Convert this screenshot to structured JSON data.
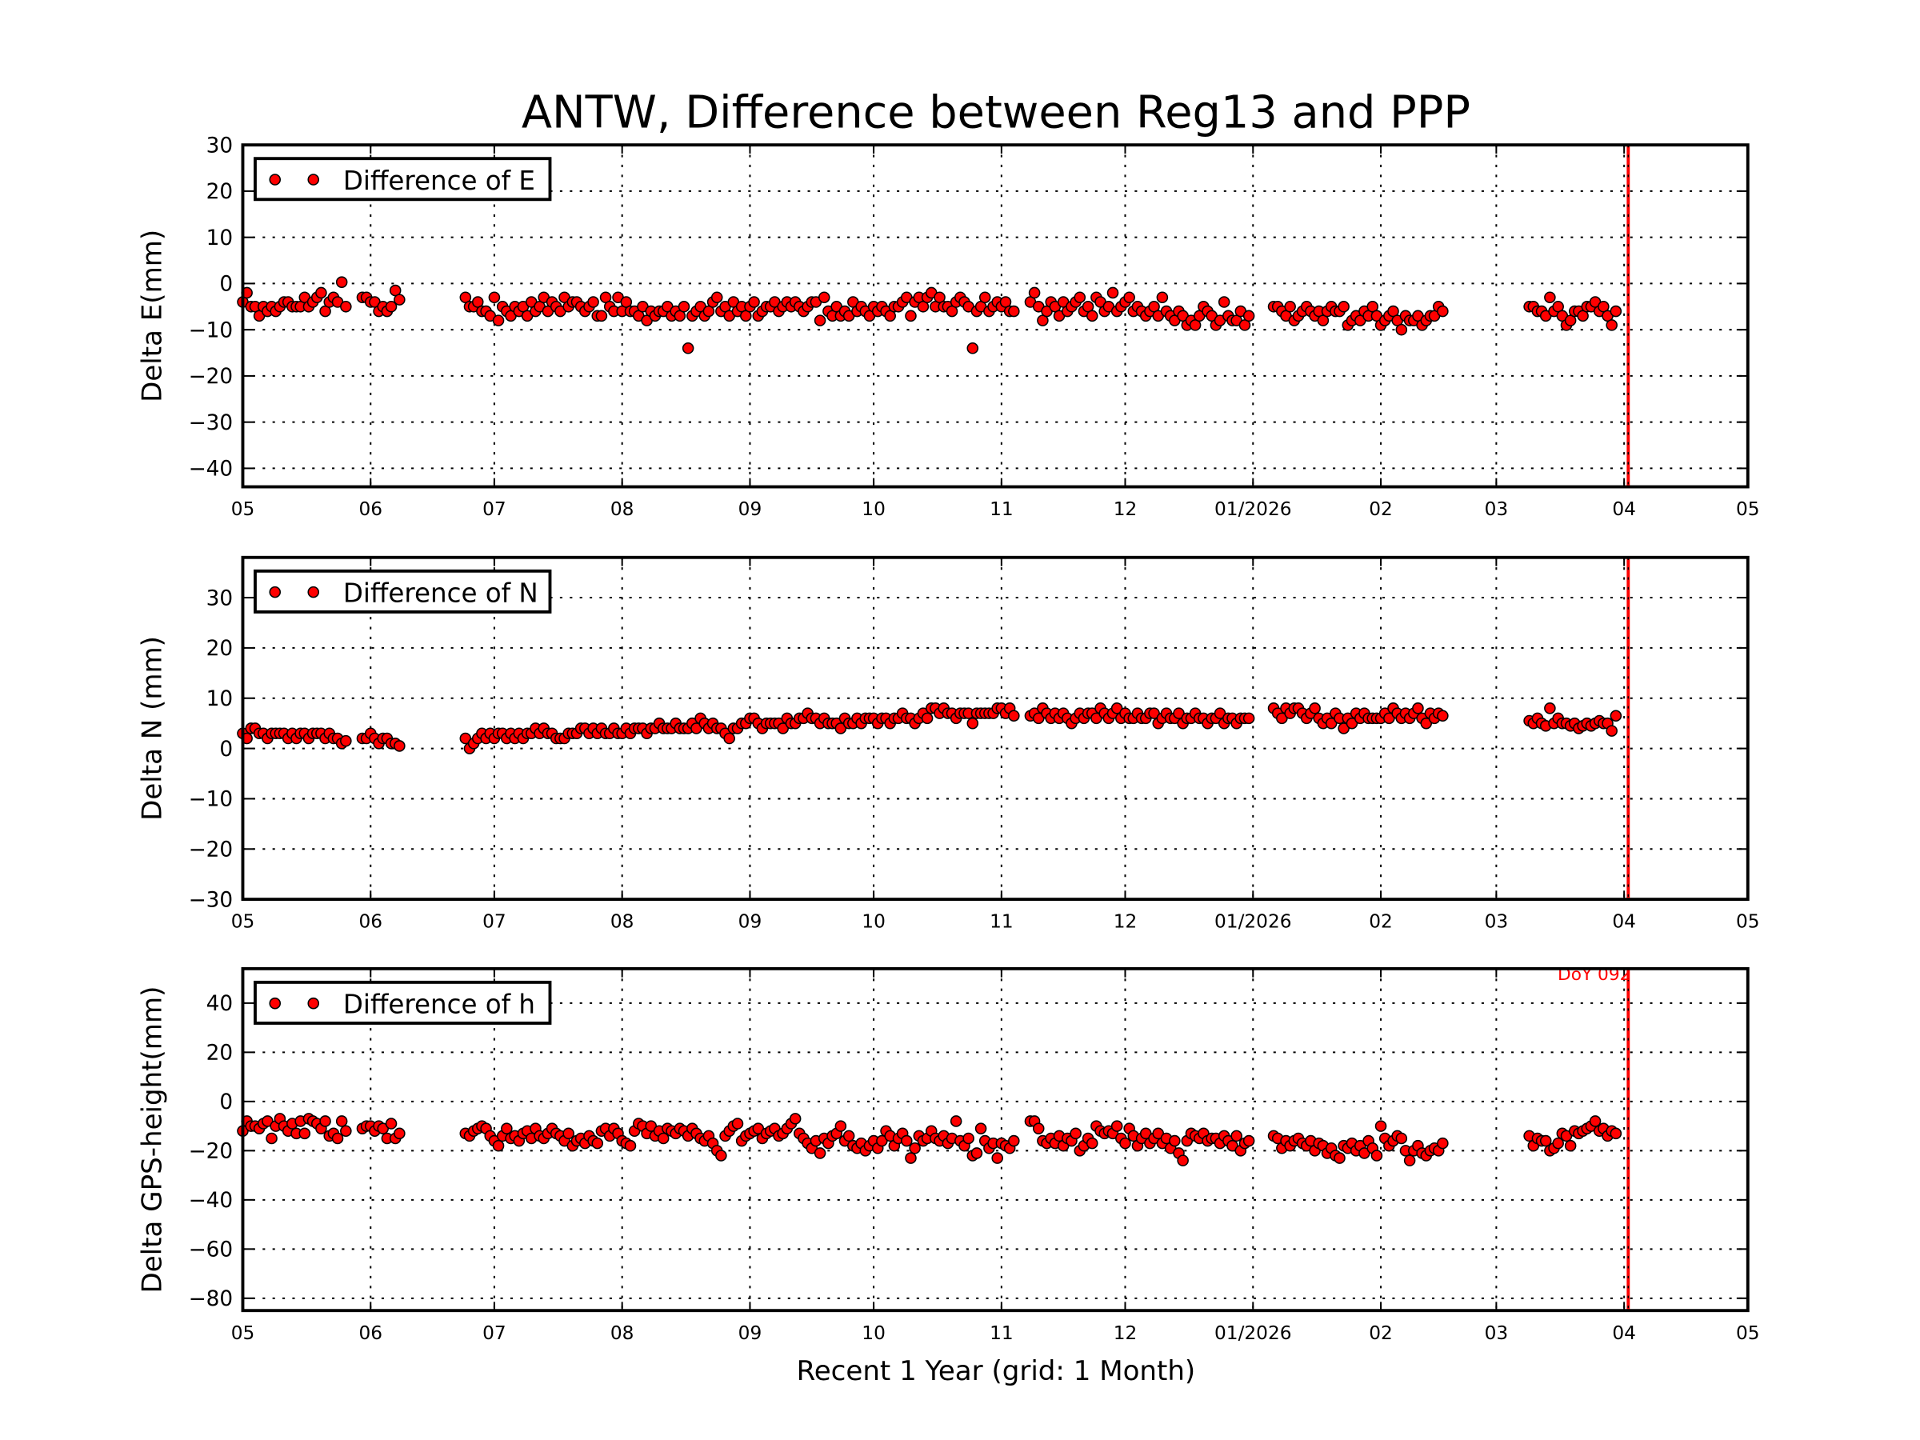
{
  "chart_data": {
    "type": "scatter",
    "title": "ANTW, Difference between Reg13 and PPP",
    "xlabel": "Recent 1 Year (grid: 1 Month)",
    "x_unit": "days since 2025-05-01",
    "xlim": [
      0,
      365
    ],
    "xticks": [
      {
        "day": 0,
        "label": "05"
      },
      {
        "day": 31,
        "label": "06"
      },
      {
        "day": 61,
        "label": "07"
      },
      {
        "day": 92,
        "label": "08"
      },
      {
        "day": 123,
        "label": "09"
      },
      {
        "day": 153,
        "label": "10"
      },
      {
        "day": 184,
        "label": "11"
      },
      {
        "day": 214,
        "label": "12"
      },
      {
        "day": 245,
        "label": "01/2026"
      },
      {
        "day": 276,
        "label": "02"
      },
      {
        "day": 304,
        "label": "03"
      },
      {
        "day": 335,
        "label": "04"
      },
      {
        "day": 365,
        "label": "05"
      }
    ],
    "grid": true,
    "marker_color": "#ff0000",
    "vline": {
      "day": 336,
      "color": "#ff0000",
      "label": "DoY 092"
    },
    "panels": [
      {
        "ylabel": "Delta E(mm)",
        "legend": "Difference of E",
        "legend_position": "top-left",
        "ylim": [
          -44,
          30
        ],
        "yticks": [
          -40,
          -30,
          -20,
          -10,
          0,
          10,
          20,
          30
        ],
        "segments": [
          {
            "start": 0,
            "values": [
              -4,
              -2,
              -5,
              -5,
              -7,
              -5,
              -6,
              -5,
              -6,
              -5,
              -4,
              -4,
              -5,
              -5,
              -5,
              -3,
              -5,
              -4,
              -3,
              -2,
              -6,
              -4,
              -3,
              -4,
              0.3,
              -5
            ]
          },
          {
            "start": 29,
            "values": [
              -3,
              -3,
              -4,
              -4,
              -6,
              -5,
              -6,
              -5,
              -1.5,
              -3.5
            ]
          },
          {
            "start": 54,
            "values": [
              -3,
              -5,
              -5,
              -4,
              -6,
              -6,
              -7,
              -3,
              -8,
              -5,
              -6,
              -7,
              -5,
              -6,
              -5,
              -7,
              -4,
              -6,
              -5,
              -3,
              -6,
              -4,
              -5,
              -6,
              -3,
              -5,
              -4,
              -4,
              -5,
              -6,
              -5,
              -4,
              -7,
              -7,
              -3,
              -5,
              -6,
              -3,
              -6,
              -4,
              -6,
              -6,
              -7,
              -5,
              -8,
              -6,
              -7,
              -6,
              -6,
              -5,
              -7,
              -6,
              -7,
              -5,
              -14,
              -7,
              -6,
              -5,
              -7,
              -6,
              -4,
              -3,
              -6,
              -5,
              -7,
              -4,
              -6,
              -5,
              -7,
              -5,
              -4,
              -7,
              -6,
              -5,
              -5,
              -4,
              -6,
              -5,
              -4,
              -5,
              -4,
              -5,
              -6,
              -5,
              -4,
              -4,
              -8,
              -3,
              -6,
              -7,
              -5,
              -7,
              -6,
              -7,
              -4,
              -6,
              -5,
              -6,
              -7,
              -5,
              -6,
              -5,
              -6,
              -7,
              -5,
              -5,
              -4,
              -3,
              -7,
              -4,
              -3,
              -5,
              -3,
              -2,
              -5,
              -3,
              -5,
              -5,
              -6,
              -4,
              -3,
              -4,
              -5,
              -14,
              -6,
              -5,
              -3,
              -6,
              -5,
              -4,
              -5,
              -4,
              -6,
              -6
            ]
          },
          {
            "start": 191,
            "values": [
              -4,
              -2,
              -5,
              -8,
              -6,
              -4,
              -5,
              -7,
              -4,
              -6,
              -5,
              -4,
              -3,
              -6,
              -5,
              -7,
              -3,
              -4,
              -6,
              -5,
              -2,
              -6,
              -5,
              -4,
              -3,
              -6,
              -5,
              -6,
              -7,
              -6,
              -5,
              -7,
              -3,
              -6,
              -7,
              -8,
              -6,
              -7,
              -9,
              -8,
              -9,
              -7,
              -5,
              -6,
              -7,
              -9,
              -8,
              -4,
              -7,
              -8,
              -8,
              -6,
              -9,
              -7
            ]
          },
          {
            "start": 250,
            "values": [
              -5,
              -5,
              -6,
              -7,
              -5,
              -8,
              -7,
              -6,
              -5,
              -6,
              -7,
              -6,
              -8,
              -6,
              -5,
              -6,
              -6,
              -5,
              -9,
              -8,
              -7,
              -8,
              -6,
              -7,
              -5,
              -7,
              -9,
              -8,
              -7,
              -6,
              -8,
              -10,
              -7,
              -8,
              -8,
              -7,
              -9,
              -8,
              -7,
              -7,
              -5,
              -6
            ]
          },
          {
            "start": 312,
            "values": [
              -5,
              -5,
              -6,
              -6,
              -7,
              -3,
              -6,
              -5,
              -7,
              -9,
              -8,
              -6,
              -6,
              -7,
              -5,
              -5,
              -4,
              -6,
              -5,
              -7,
              -9,
              -6
            ]
          }
        ]
      },
      {
        "ylabel": "Delta N (mm)",
        "legend": "Difference of N",
        "legend_position": "top-left",
        "ylim": [
          -30,
          38
        ],
        "yticks": [
          -30,
          -20,
          -10,
          0,
          10,
          20,
          30
        ],
        "segments": [
          {
            "start": 0,
            "values": [
              3,
              2,
              4,
              4,
              3,
              3,
              2,
              3,
              3,
              3,
              3,
              2,
              3,
              2,
              3,
              3,
              2,
              3,
              3,
              3,
              2,
              3,
              2,
              2,
              1,
              1.5
            ]
          },
          {
            "start": 29,
            "values": [
              2,
              2,
              3,
              2,
              1,
              2,
              2,
              1,
              1,
              0.5
            ]
          },
          {
            "start": 54,
            "values": [
              2,
              0,
              1,
              2,
              3,
              2,
              3,
              2,
              3,
              3,
              2,
              3,
              2,
              3,
              2,
              3,
              3,
              4,
              3,
              4,
              3,
              3,
              2,
              2,
              2,
              3,
              3,
              3,
              4,
              4,
              3,
              4,
              3,
              4,
              3,
              3,
              4,
              3,
              3,
              4,
              3,
              4,
              4,
              4,
              3,
              4,
              4,
              5,
              4,
              4,
              4,
              5,
              4,
              4,
              4,
              5,
              4,
              6,
              5,
              4,
              5,
              4,
              4,
              3,
              2,
              4,
              4,
              5,
              5,
              6,
              6,
              5,
              4,
              5,
              5,
              5,
              5,
              4,
              6,
              5,
              5,
              6,
              6,
              7,
              6,
              6,
              5,
              6,
              5,
              5,
              5,
              4,
              6,
              5,
              5,
              6,
              5,
              6,
              6,
              6,
              5,
              6,
              6,
              5,
              6,
              6,
              7,
              6,
              6,
              5,
              6,
              7,
              6,
              8,
              8,
              7,
              8,
              7,
              7,
              6,
              7,
              7,
              7,
              5,
              7,
              7,
              7,
              7,
              7,
              8,
              8,
              7,
              8,
              6.5
            ]
          },
          {
            "start": 191,
            "values": [
              6.5,
              7,
              6,
              8,
              7,
              6,
              7,
              6,
              7,
              6,
              5,
              6,
              7,
              6,
              7,
              7,
              6,
              8,
              7,
              6,
              7,
              8,
              6,
              7,
              6,
              6,
              7,
              6,
              6,
              7,
              7,
              5,
              6,
              7,
              6,
              6,
              7,
              5,
              6,
              6,
              7,
              6,
              6,
              5,
              6,
              6,
              7,
              5,
              6,
              6,
              5,
              6,
              6,
              6
            ]
          },
          {
            "start": 250,
            "values": [
              8,
              7,
              6,
              8,
              7,
              8,
              8,
              7,
              6,
              7,
              8,
              6,
              5,
              6,
              5,
              7,
              6,
              4,
              6,
              5,
              7,
              6,
              7,
              6,
              6,
              6,
              6,
              7,
              6,
              8,
              7,
              6,
              7,
              6,
              7,
              8,
              6,
              5,
              7,
              6,
              7,
              6.5
            ]
          },
          {
            "start": 312,
            "values": [
              5.5,
              5,
              6,
              5,
              4.5,
              8,
              5,
              6,
              5,
              5,
              4.5,
              5,
              4,
              4.5,
              5,
              4.5,
              5,
              5.5,
              5,
              5,
              3.5,
              6.5
            ]
          }
        ]
      },
      {
        "ylabel": "Delta GPS-height(mm)",
        "legend": "Difference of h",
        "legend_position": "top-left",
        "ylim": [
          -85,
          54
        ],
        "yticks": [
          -80,
          -60,
          -40,
          -20,
          0,
          20,
          40
        ],
        "annotation": "DoY 092",
        "segments": [
          {
            "start": 0,
            "values": [
              -12,
              -8,
              -10,
              -10,
              -11,
              -9,
              -8,
              -15,
              -10,
              -7,
              -10,
              -12,
              -9,
              -13,
              -8,
              -13,
              -7,
              -8,
              -9,
              -11,
              -8,
              -14,
              -13,
              -15,
              -8,
              -12
            ]
          },
          {
            "start": 29,
            "values": [
              -11,
              -10,
              -10,
              -12,
              -10,
              -11,
              -15,
              -9,
              -15,
              -13
            ]
          },
          {
            "start": 54,
            "values": [
              -13,
              -14,
              -12,
              -11,
              -10,
              -11,
              -14,
              -16,
              -18,
              -14,
              -11,
              -15,
              -14,
              -16,
              -13,
              -12,
              -15,
              -11,
              -14,
              -15,
              -13,
              -11,
              -13,
              -14,
              -16,
              -13,
              -18,
              -16,
              -15,
              -17,
              -14,
              -16,
              -17,
              -12,
              -11,
              -14,
              -11,
              -13,
              -16,
              -17,
              -18,
              -12,
              -9,
              -10,
              -13,
              -10,
              -14,
              -12,
              -15,
              -11,
              -12,
              -13,
              -11,
              -12,
              -14,
              -11,
              -13,
              -15,
              -16,
              -14,
              -17,
              -20,
              -22,
              -14,
              -12,
              -10,
              -9,
              -16,
              -14,
              -13,
              -12,
              -11,
              -15,
              -13,
              -12,
              -11,
              -14,
              -13,
              -11,
              -9,
              -7,
              -13,
              -15,
              -17,
              -19,
              -16,
              -21,
              -15,
              -17,
              -14,
              -13,
              -10,
              -16,
              -14,
              -18,
              -19,
              -17,
              -20,
              -18,
              -16,
              -19,
              -16,
              -12,
              -14,
              -18,
              -15,
              -13,
              -16,
              -23,
              -19,
              -14,
              -16,
              -15,
              -12,
              -15,
              -16,
              -14,
              -17,
              -15,
              -8,
              -16,
              -18,
              -15,
              -22,
              -21,
              -11,
              -16,
              -19,
              -17,
              -23,
              -17,
              -18,
              -19,
              -16
            ]
          },
          {
            "start": 191,
            "values": [
              -8,
              -8,
              -11,
              -16,
              -17,
              -15,
              -17,
              -14,
              -18,
              -15,
              -16,
              -13,
              -20,
              -18,
              -15,
              -17,
              -10,
              -12,
              -13,
              -12,
              -13,
              -10,
              -15,
              -17,
              -11,
              -14,
              -18,
              -15,
              -13,
              -17,
              -15,
              -13,
              -17,
              -15,
              -19,
              -16,
              -21,
              -24,
              -16,
              -13,
              -14,
              -15,
              -13,
              -16,
              -15,
              -15,
              -17,
              -14,
              -16,
              -18,
              -14,
              -20,
              -17,
              -16
            ]
          },
          {
            "start": 250,
            "values": [
              -14,
              -15,
              -19,
              -16,
              -18,
              -16,
              -15,
              -17,
              -18,
              -16,
              -20,
              -17,
              -18,
              -21,
              -19,
              -22,
              -23,
              -18,
              -19,
              -17,
              -20,
              -18,
              -21,
              -16,
              -19,
              -22,
              -10,
              -15,
              -18,
              -16,
              -14,
              -15,
              -20,
              -24,
              -20,
              -18,
              -21,
              -22,
              -20,
              -19,
              -20,
              -17
            ]
          },
          {
            "start": 312,
            "values": [
              -14,
              -18,
              -15,
              -16,
              -16,
              -20,
              -19,
              -17,
              -13,
              -14,
              -18,
              -12,
              -13,
              -12,
              -11,
              -10,
              -8,
              -12,
              -11,
              -14,
              -12,
              -13
            ]
          }
        ]
      }
    ]
  }
}
